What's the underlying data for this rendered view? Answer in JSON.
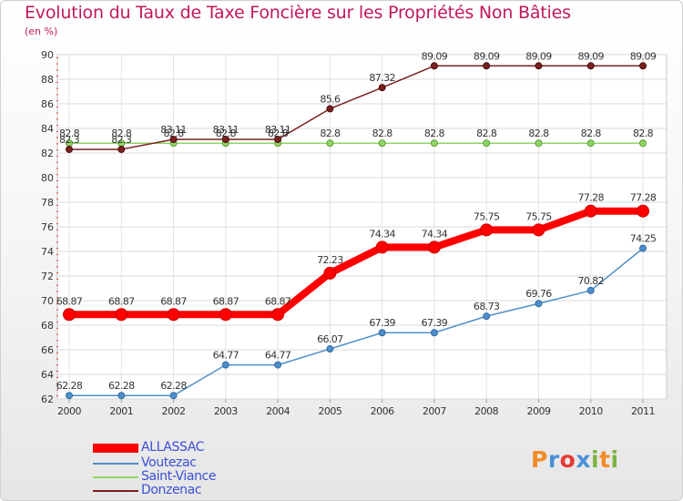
{
  "title": "Evolution du Taux de Taxe Foncière sur les Propriétés Non Bâties",
  "subtitle": "(en %)",
  "logo": {
    "text": "Proxiti",
    "colors": [
      "#f28c28",
      "#4a90d9",
      "#e53935",
      "#4a90d9",
      "#7cb342",
      "#f28c28",
      "#7cb342"
    ]
  },
  "chart_data": {
    "type": "line",
    "title": "Evolution du Taux de Taxe Foncière sur les Propriétés Non Bâties",
    "ylabel": "(en %)",
    "xlabel": "",
    "x": [
      "2000",
      "2001",
      "2002",
      "2003",
      "2004",
      "2005",
      "2006",
      "2007",
      "2008",
      "2009",
      "2010",
      "2011"
    ],
    "ylim": [
      62,
      90
    ],
    "yticks": [
      "62",
      "64",
      "66",
      "68",
      "70",
      "72",
      "74",
      "76",
      "78",
      "80",
      "82",
      "84",
      "86",
      "88",
      "90"
    ],
    "grid": true,
    "legend_position": "bottom-left",
    "series": [
      {
        "name": "ALLASSAC",
        "color": "#ff0000",
        "values": [
          68.87,
          68.87,
          68.87,
          68.87,
          68.87,
          72.23,
          74.34,
          74.34,
          75.75,
          75.75,
          77.28,
          77.28
        ],
        "labels": [
          "68.87",
          "68.87",
          "68.87",
          "68.87",
          "68.87",
          "72.23",
          "74.34",
          "74.34",
          "75.75",
          "75.75",
          "77.28",
          "77.28"
        ]
      },
      {
        "name": "Voutezac",
        "color": "#4f8fc9",
        "values": [
          62.28,
          62.28,
          62.28,
          64.77,
          64.77,
          66.07,
          67.39,
          67.39,
          68.73,
          69.76,
          70.82,
          74.25
        ],
        "labels": [
          "62.28",
          "62.28",
          "62.28",
          "64.77",
          "64.77",
          "66.07",
          "67.39",
          "67.39",
          "68.73",
          "69.76",
          "70.82",
          "74.25"
        ]
      },
      {
        "name": "Saint-Viance",
        "color": "#8fd468",
        "values": [
          82.8,
          82.8,
          82.8,
          82.8,
          82.8,
          82.8,
          82.8,
          82.8,
          82.8,
          82.8,
          82.8,
          82.8
        ],
        "labels": [
          "82.8",
          "82.8",
          "82.8",
          "82.8",
          "82.8",
          "82.8",
          "82.8",
          "82.8",
          "82.8",
          "82.8",
          "82.8",
          "82.8"
        ]
      },
      {
        "name": "Donzenac",
        "color": "#7a1f1f",
        "values": [
          82.3,
          82.3,
          83.11,
          83.11,
          83.11,
          85.6,
          87.32,
          89.09,
          89.09,
          89.09,
          89.09,
          89.09
        ],
        "labels": [
          "82.3",
          "82.3",
          "83.11",
          "83.11",
          "83.11",
          "85.6",
          "87.32",
          "89.09",
          "89.09",
          "89.09",
          "89.09",
          "89.09"
        ]
      }
    ]
  }
}
